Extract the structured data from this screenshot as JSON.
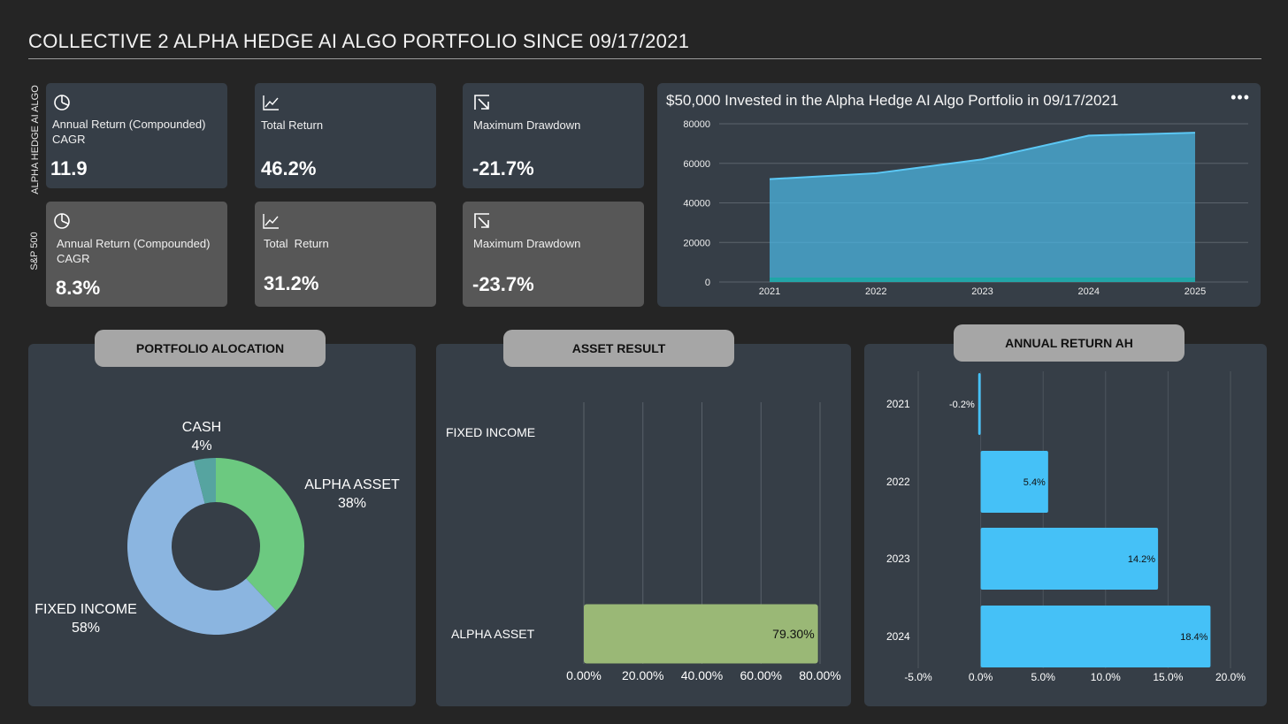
{
  "header": {
    "title": "COLLECTIVE 2 ALPHA HEDGE AI ALGO PORTFOLIO SINCE 09/17/2021"
  },
  "side_labels": {
    "ah": "ALPHA HEDGE AI ALGO",
    "sp": "S&P 500"
  },
  "kpis": {
    "ah": [
      {
        "label": "Annual Return (Compounded)",
        "label2": "CAGR",
        "value": "11.9",
        "icon": "pie-chart-icon"
      },
      {
        "label": "Total Return",
        "value": "46.2%",
        "icon": "line-chart-icon"
      },
      {
        "label": "Maximum Drawdown",
        "value": "-21.7%",
        "icon": "arrow-down-right-icon"
      }
    ],
    "sp": [
      {
        "label": "Annual Return (Compounded)",
        "label2": "CAGR",
        "value": "8.3%",
        "icon": "pie-chart-icon"
      },
      {
        "label": "Total  Return",
        "value": "31.2%",
        "icon": "line-chart-icon"
      },
      {
        "label": "Maximum Drawdown",
        "value": "-23.7%",
        "icon": "arrow-down-right-icon"
      }
    ]
  },
  "menu": {
    "dots": "•••"
  },
  "chart_data": [
    {
      "type": "area",
      "title": "$50,000 Invested in the Alpha Hedge AI Algo Portfolio in 09/17/2021",
      "x": [
        "2021",
        "2022",
        "2023",
        "2024",
        "2025"
      ],
      "series": [
        {
          "values": [
            52000,
            55000,
            62000,
            74000,
            75500
          ],
          "color": "#4bb8e6"
        },
        {
          "values": [
            1800,
            1800,
            1800,
            1800,
            1800
          ],
          "color": "#1fa6a6"
        }
      ],
      "ylim": [
        0,
        80000
      ],
      "yticks": [
        "80000",
        "60000",
        "40000",
        "20000",
        "0"
      ],
      "grid": true
    },
    {
      "type": "pie",
      "title": "PORTFOLIO ALOCATION",
      "slices": [
        {
          "label": "ALPHA ASSET",
          "pct": "38%",
          "value": 38,
          "color": "#6cc980"
        },
        {
          "label": "FIXED INCOME",
          "pct": "58%",
          "value": 58,
          "color": "#8bb5e0"
        },
        {
          "label": "CASH",
          "pct": "4%",
          "value": 4,
          "color": "#56a4a0"
        }
      ]
    },
    {
      "type": "bar",
      "orientation": "horizontal",
      "title": "ASSET RESULT",
      "categories": [
        "FIXED INCOME",
        "ALPHA ASSET"
      ],
      "values": [
        0,
        79.3
      ],
      "data_labels": [
        "",
        "79.30%"
      ],
      "xlim": [
        0,
        80
      ],
      "xticks": [
        "0.00%",
        "20.00%",
        "40.00%",
        "60.00%",
        "80.00%"
      ],
      "color": "#9ab876"
    },
    {
      "type": "bar",
      "orientation": "horizontal",
      "title": "ANNUAL RETURN AH",
      "categories": [
        "2021",
        "2022",
        "2023",
        "2024"
      ],
      "values": [
        -0.2,
        5.4,
        14.2,
        18.4
      ],
      "data_labels": [
        "-0.2%",
        "5.4%",
        "14.2%",
        "18.4%"
      ],
      "xlim": [
        -5,
        20
      ],
      "xticks": [
        "-5.0%",
        "0.0%",
        "5.0%",
        "10.0%",
        "15.0%",
        "20.0%"
      ],
      "color": "#45c1f7"
    }
  ]
}
